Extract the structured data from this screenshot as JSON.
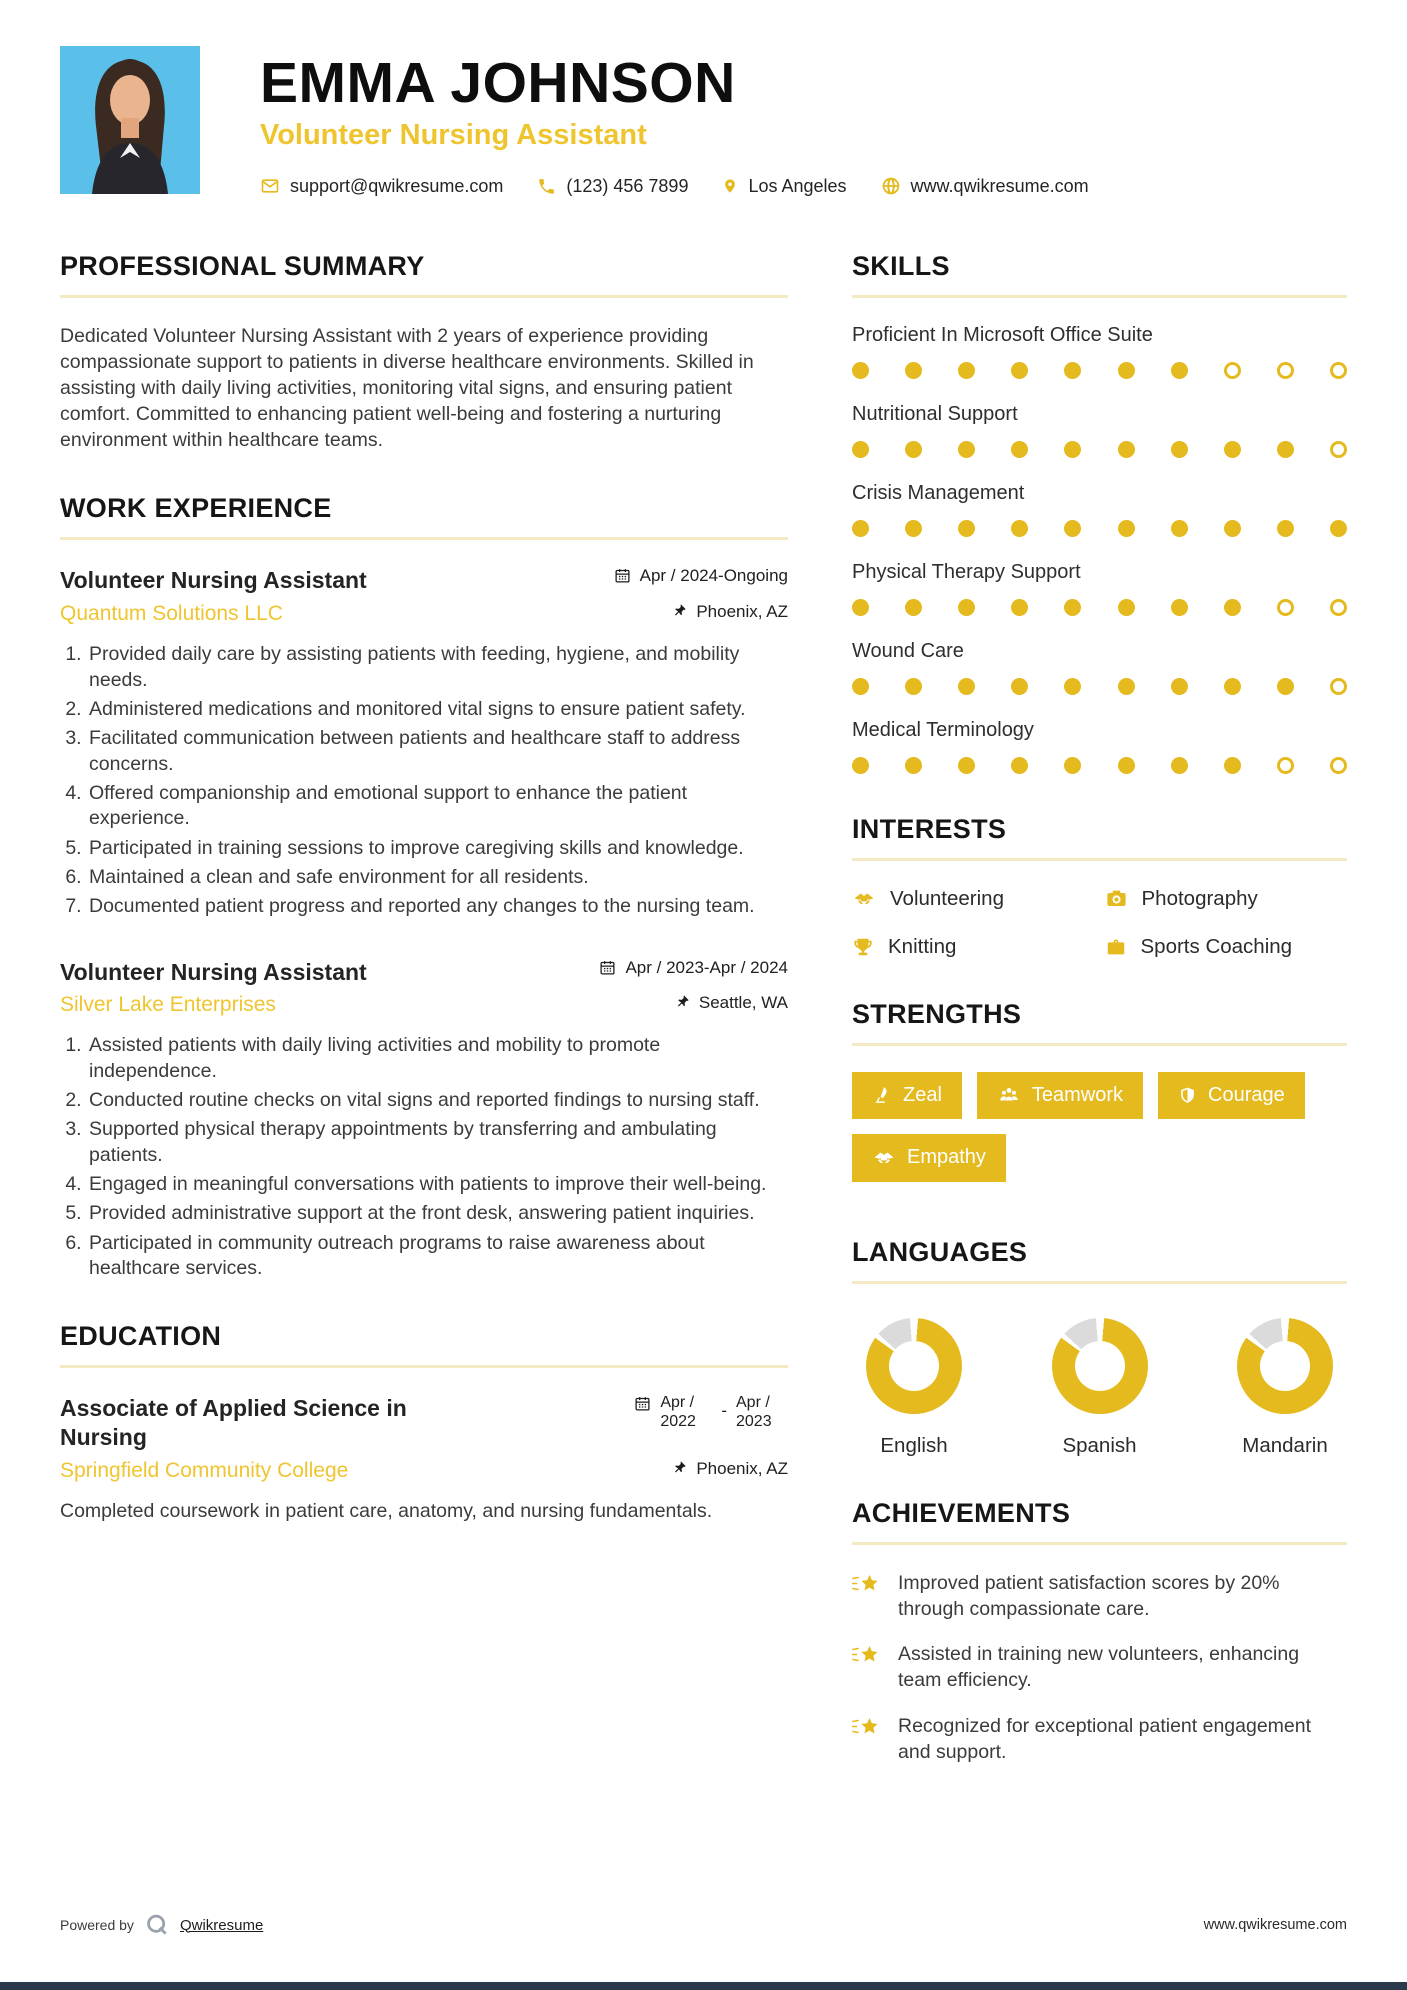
{
  "header": {
    "name": "EMMA JOHNSON",
    "title": "Volunteer Nursing Assistant",
    "contact": [
      {
        "icon": "email-icon",
        "text": "support@qwikresume.com"
      },
      {
        "icon": "phone-icon",
        "text": "(123) 456 7899"
      },
      {
        "icon": "location-icon",
        "text": "Los Angeles"
      },
      {
        "icon": "globe-icon",
        "text": "www.qwikresume.com"
      }
    ]
  },
  "summary": {
    "heading": "PROFESSIONAL SUMMARY",
    "text": "Dedicated Volunteer Nursing Assistant with 2 years of experience providing compassionate support to patients in diverse healthcare environments. Skilled in assisting with daily living activities, monitoring vital signs, and ensuring patient comfort. Committed to enhancing patient well-being and fostering a nurturing environment within healthcare teams."
  },
  "experience": {
    "heading": "WORK EXPERIENCE",
    "jobs": [
      {
        "title": "Volunteer Nursing Assistant",
        "company": "Quantum Solutions LLC",
        "dates": "Apr / 2024-Ongoing",
        "location": "Phoenix, AZ",
        "bullets": [
          "Provided daily care by assisting patients with feeding, hygiene, and mobility needs.",
          "Administered medications and monitored vital signs to ensure patient safety.",
          "Facilitated communication between patients and healthcare staff to address concerns.",
          "Offered companionship and emotional support to enhance the patient experience.",
          "Participated in training sessions to improve caregiving skills and knowledge.",
          "Maintained a clean and safe environment for all residents.",
          "Documented patient progress and reported any changes to the nursing team."
        ]
      },
      {
        "title": "Volunteer Nursing Assistant",
        "company": "Silver Lake Enterprises",
        "dates": "Apr / 2023-Apr / 2024",
        "location": "Seattle, WA",
        "bullets": [
          "Assisted patients with daily living activities and mobility to promote independence.",
          "Conducted routine checks on vital signs and reported findings to nursing staff.",
          "Supported physical therapy appointments by transferring and ambulating patients.",
          "Engaged in meaningful conversations with patients to improve their well-being.",
          "Provided administrative support at the front desk, answering patient inquiries.",
          "Participated in community outreach programs to raise awareness about healthcare services."
        ]
      }
    ]
  },
  "education": {
    "heading": "EDUCATION",
    "degree": "Associate of Applied Science in Nursing",
    "school": "Springfield Community College",
    "date_start": "Apr / 2022",
    "date_separator": "-",
    "date_end": "Apr / 2023",
    "location": "Phoenix, AZ",
    "description": "Completed coursework in patient care, anatomy, and nursing fundamentals."
  },
  "skills": {
    "heading": "SKILLS",
    "max_dots": 10,
    "items": [
      {
        "name": "Proficient In Microsoft Office Suite",
        "level": 7
      },
      {
        "name": "Nutritional Support",
        "level": 9
      },
      {
        "name": "Crisis Management",
        "level": 10
      },
      {
        "name": "Physical Therapy Support",
        "level": 8
      },
      {
        "name": "Wound Care",
        "level": 9
      },
      {
        "name": "Medical Terminology",
        "level": 8
      }
    ]
  },
  "interests": {
    "heading": "INTERESTS",
    "items": [
      {
        "icon": "handshake-icon",
        "label": "Volunteering"
      },
      {
        "icon": "camera-icon",
        "label": "Photography"
      },
      {
        "icon": "trophy-icon",
        "label": "Knitting"
      },
      {
        "icon": "briefcase-icon",
        "label": "Sports Coaching"
      }
    ]
  },
  "strengths": {
    "heading": "STRENGTHS",
    "items": [
      {
        "icon": "quill-icon",
        "label": "Zeal"
      },
      {
        "icon": "team-icon",
        "label": "Teamwork"
      },
      {
        "icon": "shield-icon",
        "label": "Courage"
      },
      {
        "icon": "handshake-icon",
        "label": "Empathy"
      }
    ]
  },
  "languages": {
    "heading": "LANGUAGES",
    "items": [
      {
        "name": "English",
        "percent": 85
      },
      {
        "name": "Spanish",
        "percent": 85
      },
      {
        "name": "Mandarin",
        "percent": 85
      }
    ]
  },
  "achievements": {
    "heading": "ACHIEVEMENTS",
    "items": [
      "Improved patient satisfaction scores by 20% through compassionate care.",
      "Assisted in training new volunteers, enhancing team efficiency.",
      "Recognized for exceptional patient engagement and support."
    ]
  },
  "footer": {
    "powered_by": "Powered by",
    "brand": "Qwikresume",
    "site": "www.qwikresume.com"
  },
  "colors": {
    "accent": "#E4BA1E",
    "accent_soft": "#F3E9C2",
    "yellow_text": "#EFC52F",
    "photo_bg": "#5ABFE9",
    "donut_track": "#DBDBDB",
    "footer_bar": "#2B3A4A"
  }
}
